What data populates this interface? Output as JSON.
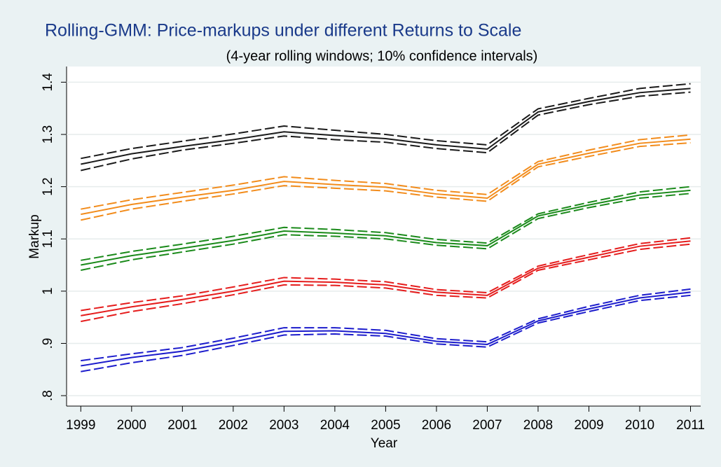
{
  "chart_data": {
    "type": "line",
    "title": "Rolling-GMM: Price-markups under different Returns to Scale",
    "subtitle": "(4-year rolling windows; 10% confidence intervals)",
    "x_label": "Year",
    "y_label": "Markup",
    "x": [
      1999,
      2000,
      2001,
      2002,
      2003,
      2004,
      2005,
      2006,
      2007,
      2008,
      2009,
      2010,
      2011
    ],
    "xlim": [
      1998.72,
      2011.2
    ],
    "xticks": [
      1999,
      2000,
      2001,
      2002,
      2003,
      2004,
      2005,
      2006,
      2007,
      2008,
      2009,
      2010,
      2011
    ],
    "ylim": [
      0.78,
      1.43
    ],
    "yticks": [
      {
        "value": 0.8,
        "label": ".8"
      },
      {
        "value": 0.9,
        "label": ".9"
      },
      1,
      1.1,
      1.2,
      1.3,
      1.4
    ],
    "grid": true,
    "series": [
      {
        "color": "#1a1a1a",
        "dashed": false,
        "values": [
          1.243,
          1.263,
          1.277,
          1.29,
          1.305,
          1.298,
          1.292,
          1.28,
          1.272,
          1.343,
          1.363,
          1.38,
          1.388
        ]
      },
      {
        "color": "#1a1a1a",
        "dashed": true,
        "values": [
          1.254,
          1.273,
          1.287,
          1.301,
          1.316,
          1.308,
          1.3,
          1.288,
          1.28,
          1.349,
          1.369,
          1.388,
          1.397
        ]
      },
      {
        "color": "#1a1a1a",
        "dashed": true,
        "values": [
          1.231,
          1.253,
          1.27,
          1.283,
          1.297,
          1.29,
          1.285,
          1.273,
          1.265,
          1.337,
          1.357,
          1.373,
          1.381
        ]
      },
      {
        "color": "#f28c1c",
        "dashed": false,
        "values": [
          1.147,
          1.166,
          1.18,
          1.193,
          1.21,
          1.204,
          1.199,
          1.186,
          1.178,
          1.243,
          1.264,
          1.283,
          1.291
        ]
      },
      {
        "color": "#f28c1c",
        "dashed": true,
        "values": [
          1.157,
          1.175,
          1.189,
          1.203,
          1.219,
          1.212,
          1.206,
          1.193,
          1.185,
          1.248,
          1.27,
          1.29,
          1.299
        ]
      },
      {
        "color": "#f28c1c",
        "dashed": true,
        "values": [
          1.136,
          1.157,
          1.172,
          1.186,
          1.202,
          1.197,
          1.192,
          1.18,
          1.172,
          1.238,
          1.258,
          1.277,
          1.284
        ]
      },
      {
        "color": "#1a8a1a",
        "dashed": false,
        "values": [
          1.05,
          1.068,
          1.082,
          1.097,
          1.115,
          1.111,
          1.106,
          1.093,
          1.087,
          1.144,
          1.165,
          1.184,
          1.193
        ]
      },
      {
        "color": "#1a8a1a",
        "dashed": true,
        "values": [
          1.059,
          1.076,
          1.09,
          1.105,
          1.122,
          1.118,
          1.112,
          1.099,
          1.092,
          1.148,
          1.17,
          1.19,
          1.2
        ]
      },
      {
        "color": "#1a8a1a",
        "dashed": true,
        "values": [
          1.04,
          1.06,
          1.075,
          1.09,
          1.108,
          1.105,
          1.1,
          1.088,
          1.081,
          1.139,
          1.16,
          1.178,
          1.187
        ]
      },
      {
        "color": "#e51c1c",
        "dashed": false,
        "values": [
          0.953,
          0.97,
          0.984,
          1.0,
          1.019,
          1.017,
          1.012,
          0.998,
          0.992,
          1.044,
          1.065,
          1.086,
          1.096
        ]
      },
      {
        "color": "#e51c1c",
        "dashed": true,
        "values": [
          0.963,
          0.978,
          0.991,
          1.008,
          1.026,
          1.023,
          1.018,
          1.003,
          0.997,
          1.048,
          1.07,
          1.091,
          1.102
        ]
      },
      {
        "color": "#e51c1c",
        "dashed": true,
        "values": [
          0.942,
          0.961,
          0.976,
          0.993,
          1.012,
          1.011,
          1.006,
          0.992,
          0.987,
          1.04,
          1.06,
          1.08,
          1.09
        ]
      },
      {
        "color": "#1c1ccc",
        "dashed": false,
        "values": [
          0.857,
          0.873,
          0.885,
          0.903,
          0.923,
          0.924,
          0.919,
          0.904,
          0.898,
          0.943,
          0.966,
          0.987,
          0.998
        ]
      },
      {
        "color": "#1c1ccc",
        "dashed": true,
        "values": [
          0.867,
          0.88,
          0.892,
          0.91,
          0.93,
          0.93,
          0.925,
          0.909,
          0.903,
          0.947,
          0.971,
          0.992,
          1.004
        ]
      },
      {
        "color": "#1c1ccc",
        "dashed": true,
        "values": [
          0.846,
          0.863,
          0.877,
          0.896,
          0.916,
          0.918,
          0.914,
          0.899,
          0.893,
          0.939,
          0.961,
          0.982,
          0.992
        ]
      }
    ]
  }
}
